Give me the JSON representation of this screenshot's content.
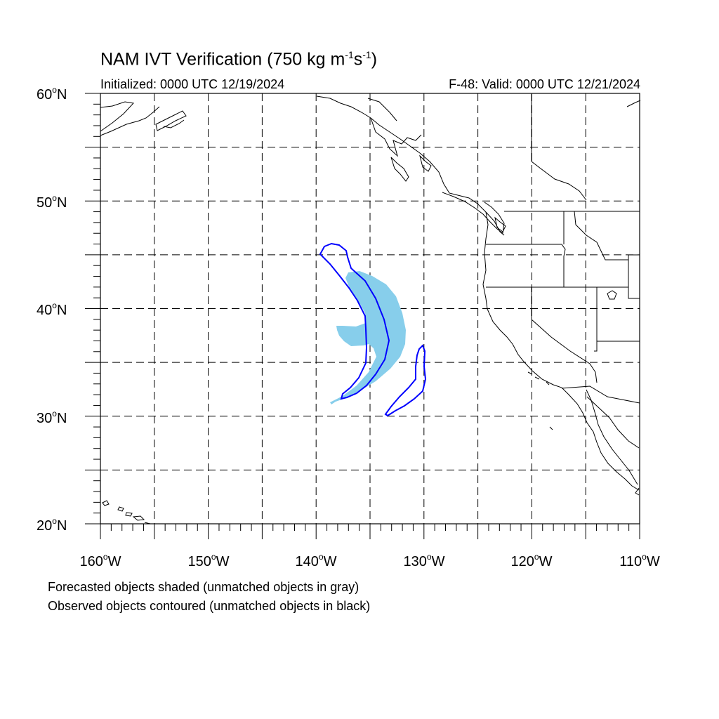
{
  "title": {
    "main": "NAM IVT Verification (750 kg m",
    "exp1": "-1",
    "mid": "s",
    "exp2": "-1",
    "end": ")"
  },
  "subtitle_left": "Initialized: 0000 UTC 12/19/2024",
  "subtitle_right": "F-48: Valid: 0000 UTC 12/21/2024",
  "lat_labels": [
    {
      "value": "60",
      "suffix": "N"
    },
    {
      "value": "50",
      "suffix": "N"
    },
    {
      "value": "40",
      "suffix": "N"
    },
    {
      "value": "30",
      "suffix": "N"
    },
    {
      "value": "20",
      "suffix": "N"
    }
  ],
  "lon_labels": [
    {
      "value": "160",
      "suffix": "W"
    },
    {
      "value": "150",
      "suffix": "W"
    },
    {
      "value": "140",
      "suffix": "W"
    },
    {
      "value": "130",
      "suffix": "W"
    },
    {
      "value": "120",
      "suffix": "W"
    },
    {
      "value": "110",
      "suffix": "W"
    }
  ],
  "degree_symbol": "o",
  "footnotes": [
    "Forecasted objects shaded (unmatched objects in gray)",
    "Observed objects contoured (unmatched objects in black)"
  ],
  "colors": {
    "forecast_fill": "#87CEEB",
    "observed_contour": "#0000FF",
    "coastline": "#000000",
    "grid": "#000000"
  },
  "map": {
    "lon_range": [
      -160,
      -110
    ],
    "lat_range": [
      20,
      60
    ],
    "grid_spacing_deg": 5,
    "grid_style": "dashed"
  }
}
